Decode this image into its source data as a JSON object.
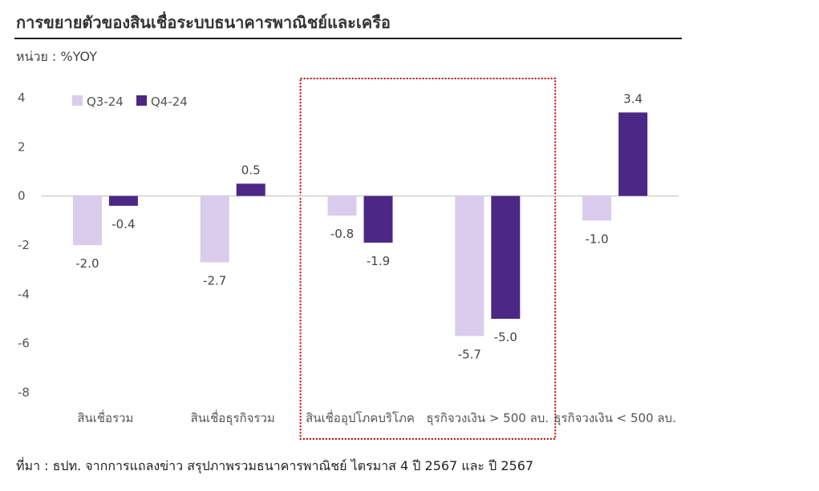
{
  "title": "การขยายตัวของสินเชื่อระบบธนาคารพาณิชย์และเครือ",
  "unit_label": "หน่วย : %YOY",
  "source_note": "ที่มา : ธปท. จากการแถลงข่าว สรุปภาพรวมธนาคารพาณิชย์ ไตรมาส 4 ปี 2567 และ ปี 2567",
  "chart_data": {
    "type": "bar",
    "categories": [
      "สินเชื่อรวม",
      "สินเชื่อธุรกิจรวม",
      "สินเชื่ออุปโภคบริโภค",
      "ธุรกิจวงเงิน > 500 ลบ.",
      "ธุรกิจวงเงิน < 500 ลบ."
    ],
    "series": [
      {
        "name": "Q3-24",
        "values": [
          -2.0,
          -2.7,
          -0.8,
          -5.7,
          -1.0
        ],
        "color": "#d9ccec"
      },
      {
        "name": "Q4-24",
        "values": [
          -0.4,
          0.5,
          -1.9,
          -5.0,
          3.4
        ],
        "color": "#4b2886"
      }
    ],
    "yticks": [
      4,
      2,
      0,
      -2,
      -4,
      -6,
      -8
    ],
    "ylim": [
      -8,
      4
    ],
    "legend_position": "top-left",
    "highlight": {
      "categories": [
        "สินเชื่ออุปโภคบริโภค",
        "ธุรกิจวงเงิน > 500 ลบ."
      ],
      "color": "#c00000",
      "style": "dotted"
    },
    "grid": false
  }
}
